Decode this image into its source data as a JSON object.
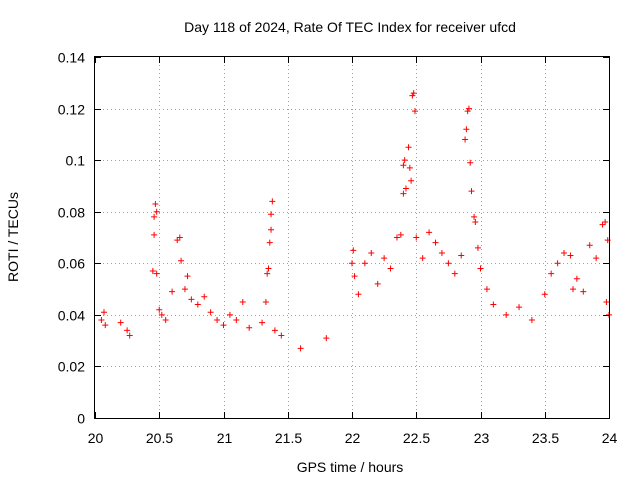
{
  "chart_data": {
    "type": "scatter",
    "title": "Day 118 of 2024, Rate Of TEC Index for receiver ufcd",
    "xlabel": "GPS time / hours",
    "ylabel": "ROTI / TECUs",
    "xlim": [
      20,
      24
    ],
    "ylim": [
      0,
      0.14
    ],
    "xticks": [
      "20",
      "20.5",
      "21",
      "21.5",
      "22",
      "22.5",
      "23",
      "23.5",
      "24"
    ],
    "yticks": [
      "0",
      "0.02",
      "0.04",
      "0.06",
      "0.08",
      "0.1",
      "0.12",
      "0.14"
    ],
    "grid": true,
    "marker": "+",
    "color": "#ff0000",
    "series": [
      {
        "name": "ROTI",
        "points": [
          [
            20.05,
            0.038
          ],
          [
            20.07,
            0.041
          ],
          [
            20.08,
            0.036
          ],
          [
            20.2,
            0.037
          ],
          [
            20.25,
            0.034
          ],
          [
            20.27,
            0.032
          ],
          [
            20.45,
            0.057
          ],
          [
            20.46,
            0.071
          ],
          [
            20.46,
            0.078
          ],
          [
            20.47,
            0.083
          ],
          [
            20.48,
            0.08
          ],
          [
            20.48,
            0.056
          ],
          [
            20.5,
            0.042
          ],
          [
            20.52,
            0.04
          ],
          [
            20.55,
            0.038
          ],
          [
            20.6,
            0.049
          ],
          [
            20.64,
            0.069
          ],
          [
            20.66,
            0.07
          ],
          [
            20.67,
            0.061
          ],
          [
            20.7,
            0.05
          ],
          [
            20.72,
            0.055
          ],
          [
            20.75,
            0.046
          ],
          [
            20.8,
            0.044
          ],
          [
            20.85,
            0.047
          ],
          [
            20.9,
            0.041
          ],
          [
            20.95,
            0.038
          ],
          [
            21.0,
            0.036
          ],
          [
            21.05,
            0.04
          ],
          [
            21.1,
            0.038
          ],
          [
            21.15,
            0.045
          ],
          [
            21.2,
            0.035
          ],
          [
            21.3,
            0.037
          ],
          [
            21.33,
            0.045
          ],
          [
            21.34,
            0.056
          ],
          [
            21.35,
            0.058
          ],
          [
            21.36,
            0.068
          ],
          [
            21.37,
            0.073
          ],
          [
            21.37,
            0.079
          ],
          [
            21.38,
            0.084
          ],
          [
            21.4,
            0.034
          ],
          [
            21.45,
            0.032
          ],
          [
            21.6,
            0.027
          ],
          [
            21.8,
            0.031
          ],
          [
            22.0,
            0.06
          ],
          [
            22.01,
            0.065
          ],
          [
            22.02,
            0.055
          ],
          [
            22.05,
            0.048
          ],
          [
            22.1,
            0.06
          ],
          [
            22.15,
            0.064
          ],
          [
            22.2,
            0.052
          ],
          [
            22.25,
            0.062
          ],
          [
            22.3,
            0.058
          ],
          [
            22.35,
            0.07
          ],
          [
            22.38,
            0.071
          ],
          [
            22.4,
            0.087
          ],
          [
            22.4,
            0.098
          ],
          [
            22.41,
            0.1
          ],
          [
            22.42,
            0.089
          ],
          [
            22.44,
            0.105
          ],
          [
            22.45,
            0.097
          ],
          [
            22.46,
            0.092
          ],
          [
            22.47,
            0.125
          ],
          [
            22.48,
            0.126
          ],
          [
            22.49,
            0.119
          ],
          [
            22.5,
            0.07
          ],
          [
            22.55,
            0.062
          ],
          [
            22.6,
            0.072
          ],
          [
            22.65,
            0.068
          ],
          [
            22.7,
            0.064
          ],
          [
            22.75,
            0.06
          ],
          [
            22.8,
            0.056
          ],
          [
            22.85,
            0.063
          ],
          [
            22.88,
            0.108
          ],
          [
            22.89,
            0.112
          ],
          [
            22.9,
            0.119
          ],
          [
            22.91,
            0.12
          ],
          [
            22.92,
            0.099
          ],
          [
            22.93,
            0.088
          ],
          [
            22.95,
            0.078
          ],
          [
            22.96,
            0.076
          ],
          [
            22.98,
            0.066
          ],
          [
            23.0,
            0.058
          ],
          [
            23.05,
            0.05
          ],
          [
            23.1,
            0.044
          ],
          [
            23.2,
            0.04
          ],
          [
            23.3,
            0.043
          ],
          [
            23.4,
            0.038
          ],
          [
            23.5,
            0.048
          ],
          [
            23.55,
            0.056
          ],
          [
            23.6,
            0.06
          ],
          [
            23.65,
            0.064
          ],
          [
            23.7,
            0.063
          ],
          [
            23.72,
            0.05
          ],
          [
            23.75,
            0.054
          ],
          [
            23.8,
            0.049
          ],
          [
            23.85,
            0.067
          ],
          [
            23.9,
            0.062
          ],
          [
            23.95,
            0.075
          ],
          [
            23.97,
            0.076
          ],
          [
            23.99,
            0.069
          ],
          [
            24.0,
            0.04
          ],
          [
            23.98,
            0.045
          ]
        ]
      }
    ]
  }
}
